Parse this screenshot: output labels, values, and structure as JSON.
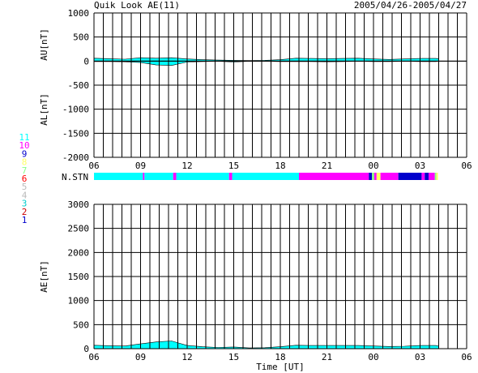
{
  "header": {
    "title": "Quik Look AE(11)",
    "date_range": "2005/04/26-2005/04/27"
  },
  "station_legend": {
    "items": [
      {
        "label": "11",
        "color": "#00ffff"
      },
      {
        "label": "10",
        "color": "#ff00ff"
      },
      {
        "label": "9",
        "color": "#0000cc"
      },
      {
        "label": "8",
        "color": "#ffff66"
      },
      {
        "label": "7",
        "color": "#88ff88"
      },
      {
        "label": "6",
        "color": "#ff0000"
      },
      {
        "label": "5",
        "color": "#bbbbbb"
      },
      {
        "label": "4",
        "color": "#bbbbbb"
      },
      {
        "label": "3",
        "color": "#00cccc"
      },
      {
        "label": "2",
        "color": "#cc0000"
      },
      {
        "label": "1",
        "color": "#0000cc"
      }
    ]
  },
  "chart_data": [
    {
      "type": "area",
      "title": "Quik Look AE(11)",
      "ylabel_top": "AU[nT]",
      "ylabel_bottom": "AL[nT]",
      "ylim": [
        -2000,
        1000
      ],
      "yticks": [
        "1000",
        "500",
        "0",
        "-500",
        "-1000",
        "-1500",
        "-2000"
      ],
      "xticks": [
        "06",
        "09",
        "12",
        "15",
        "18",
        "21",
        "00",
        "03",
        "06"
      ],
      "xlim_hours": [
        6,
        30
      ],
      "grid": true,
      "series": [
        {
          "role": "AU",
          "x": [
            6,
            7,
            8,
            9,
            10,
            11,
            12,
            13,
            14,
            15,
            16,
            17,
            18,
            19,
            20,
            21,
            22,
            23,
            24,
            25,
            26,
            27,
            28,
            28.2
          ],
          "y": [
            60,
            50,
            40,
            70,
            60,
            70,
            45,
            30,
            20,
            15,
            10,
            15,
            30,
            60,
            55,
            50,
            55,
            60,
            45,
            35,
            45,
            55,
            55,
            50
          ]
        },
        {
          "role": "AL",
          "x": [
            6,
            7,
            8,
            9,
            10,
            11,
            12,
            13,
            14,
            15,
            16,
            17,
            18,
            19,
            20,
            21,
            22,
            23,
            24,
            25,
            26,
            27,
            28,
            28.2
          ],
          "y": [
            -10,
            -10,
            -15,
            -30,
            -80,
            -90,
            -20,
            -10,
            -5,
            -20,
            -5,
            -5,
            -10,
            -10,
            -10,
            -15,
            -10,
            -5,
            -10,
            -10,
            -5,
            -10,
            -10,
            -5
          ]
        }
      ]
    },
    {
      "type": "area",
      "ylabel": "AE[nT]",
      "xlabel": "Time [UT]",
      "ylim": [
        0,
        3000
      ],
      "yticks": [
        "3000",
        "2500",
        "2000",
        "1500",
        "1000",
        "500",
        "0"
      ],
      "xticks": [
        "06",
        "09",
        "12",
        "15",
        "18",
        "21",
        "00",
        "03",
        "06"
      ],
      "xlim_hours": [
        6,
        30
      ],
      "grid": true,
      "series": [
        {
          "role": "AE",
          "x": [
            6,
            7,
            8,
            9,
            10,
            11,
            12,
            13,
            14,
            15,
            16,
            17,
            18,
            19,
            20,
            21,
            22,
            23,
            24,
            25,
            26,
            27,
            28,
            28.2
          ],
          "y": [
            70,
            60,
            55,
            100,
            140,
            160,
            65,
            40,
            25,
            35,
            15,
            20,
            40,
            70,
            65,
            65,
            65,
            65,
            55,
            45,
            50,
            65,
            65,
            55
          ]
        }
      ]
    }
  ],
  "station_bar": {
    "label": "N.STN",
    "segments": [
      {
        "start": 6.0,
        "end": 9.15,
        "station": 11
      },
      {
        "start": 9.15,
        "end": 9.25,
        "station": 10
      },
      {
        "start": 9.25,
        "end": 11.1,
        "station": 11
      },
      {
        "start": 11.1,
        "end": 11.3,
        "station": 10
      },
      {
        "start": 11.3,
        "end": 14.7,
        "station": 11
      },
      {
        "start": 14.7,
        "end": 14.9,
        "station": 10
      },
      {
        "start": 14.9,
        "end": 19.2,
        "station": 11
      },
      {
        "start": 19.2,
        "end": 23.7,
        "station": 10
      },
      {
        "start": 23.7,
        "end": 23.9,
        "station": 9
      },
      {
        "start": 23.9,
        "end": 24.05,
        "station": 7
      },
      {
        "start": 24.05,
        "end": 24.2,
        "station": 10
      },
      {
        "start": 24.2,
        "end": 24.45,
        "station": 8
      },
      {
        "start": 24.45,
        "end": 25.6,
        "station": 10
      },
      {
        "start": 25.6,
        "end": 27.1,
        "station": 9
      },
      {
        "start": 27.1,
        "end": 27.3,
        "station": 10
      },
      {
        "start": 27.3,
        "end": 27.55,
        "station": 9
      },
      {
        "start": 27.55,
        "end": 27.95,
        "station": 10
      },
      {
        "start": 27.95,
        "end": 28.05,
        "station": 7
      },
      {
        "start": 28.05,
        "end": 28.15,
        "station": 8
      }
    ]
  },
  "colors": {
    "fill_primary": "#00ffff",
    "fill_secondary": "#ff00ff",
    "fill_tertiary": "#0000cc",
    "grid": "#000000"
  }
}
